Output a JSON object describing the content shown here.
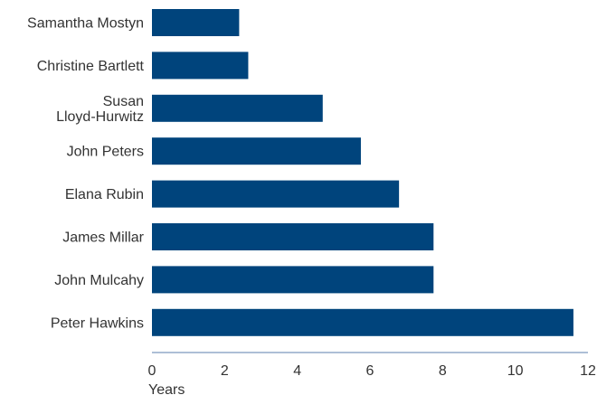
{
  "chart_data": {
    "type": "bar",
    "orientation": "horizontal",
    "categories": [
      [
        "Samantha Mostyn"
      ],
      [
        "Christine Bartlett"
      ],
      [
        "Susan",
        "Lloyd-Hurwitz"
      ],
      [
        "John Peters"
      ],
      [
        "Elana Rubin"
      ],
      [
        "James Millar"
      ],
      [
        "John Mulcahy"
      ],
      [
        "Peter Hawkins"
      ]
    ],
    "values": [
      2.4,
      2.65,
      4.7,
      5.75,
      6.8,
      7.75,
      7.75,
      11.6
    ],
    "xlabel": "Years",
    "xlim": [
      0,
      12
    ],
    "xticks": [
      0,
      2,
      4,
      6,
      8,
      10,
      12
    ],
    "bar_color": "#00447c",
    "axis_color": "#5b7fae",
    "grid": false,
    "legend": "none"
  }
}
